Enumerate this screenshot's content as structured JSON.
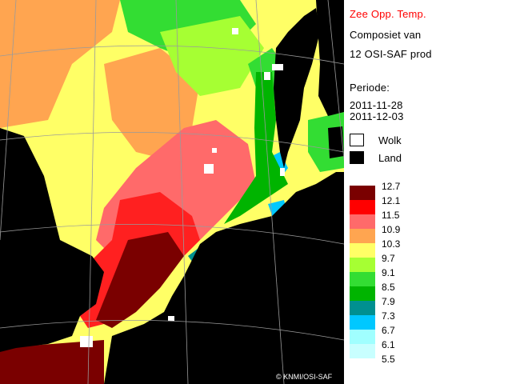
{
  "legend": {
    "title": "Zee Opp. Temp.",
    "line2": "Composiet van",
    "line3": "12 OSI-SAF prod",
    "period_label": "Periode:",
    "date_start": "2011-11-28",
    "date_end": "2011-12-03",
    "cloud_label": "Wolk",
    "land_label": "Land",
    "cloud_color": "#ffffff",
    "land_color": "#000000"
  },
  "scale": {
    "ticks": [
      "12.7",
      "12.1",
      "11.5",
      "10.9",
      "10.3",
      "9.7",
      "9.1",
      "8.5",
      "7.9",
      "7.3",
      "6.7",
      "6.1",
      "5.5"
    ],
    "colors": [
      "#7a0000",
      "#ff0000",
      "#ff6a6a",
      "#ffa550",
      "#ffff66",
      "#a6ff33",
      "#33dd33",
      "#00b400",
      "#009090",
      "#00c8ff",
      "#a0ffff",
      "#c8ffff"
    ]
  },
  "map": {
    "copyright": "© KNMI/OSI-SAF",
    "colors": {
      "land": "#000000",
      "sea_dark_red": "#7a0000",
      "sea_red": "#ff2020",
      "sea_salmon": "#ff6a6a",
      "sea_orange": "#ffa550",
      "sea_yellow": "#ffff66",
      "sea_lime": "#a6ff33",
      "sea_green": "#33dd33",
      "sea_teal": "#009090",
      "sea_cyan": "#00c8ff",
      "cloud": "#ffffff",
      "graticule": "#9a9a9a"
    }
  }
}
